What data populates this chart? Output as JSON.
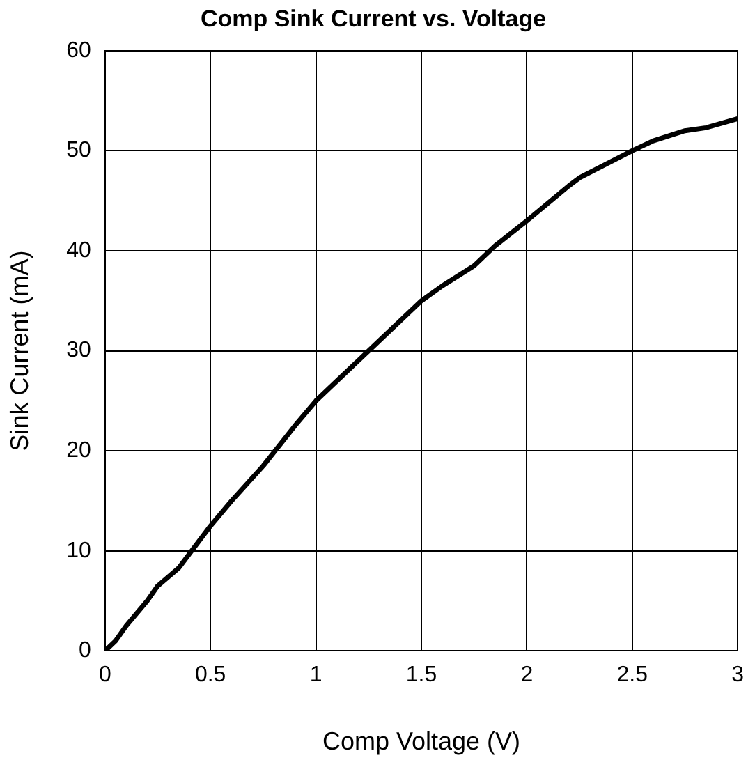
{
  "chart_data": {
    "type": "line",
    "title": "Comp Sink Current vs. Voltage",
    "xlabel": "Comp Voltage (V)",
    "ylabel": "Sink Current (mA)",
    "x": [
      0,
      0.05,
      0.1,
      0.2,
      0.25,
      0.35,
      0.5,
      0.6,
      0.75,
      0.9,
      1,
      1.25,
      1.5,
      1.6,
      1.75,
      1.85,
      2,
      2.2,
      2.25,
      2.5,
      2.6,
      2.75,
      2.85,
      3
    ],
    "series": [
      {
        "color": "#000000",
        "values": [
          0,
          1,
          2.5,
          5,
          6.5,
          8.3,
          12.5,
          15,
          18.5,
          22.5,
          25,
          30,
          35,
          36.5,
          38.5,
          40.5,
          43,
          46.5,
          47.3,
          50,
          51,
          52,
          52.3,
          53.2
        ]
      }
    ],
    "xlim": [
      0,
      3
    ],
    "xticks": [
      0,
      0.5,
      1,
      1.5,
      2,
      2.5,
      3
    ],
    "ylim": [
      0,
      60
    ],
    "yticks": [
      0,
      10,
      20,
      30,
      40,
      50,
      60
    ],
    "grid": true,
    "legend": false,
    "marker": "none",
    "line_style": "solid"
  }
}
